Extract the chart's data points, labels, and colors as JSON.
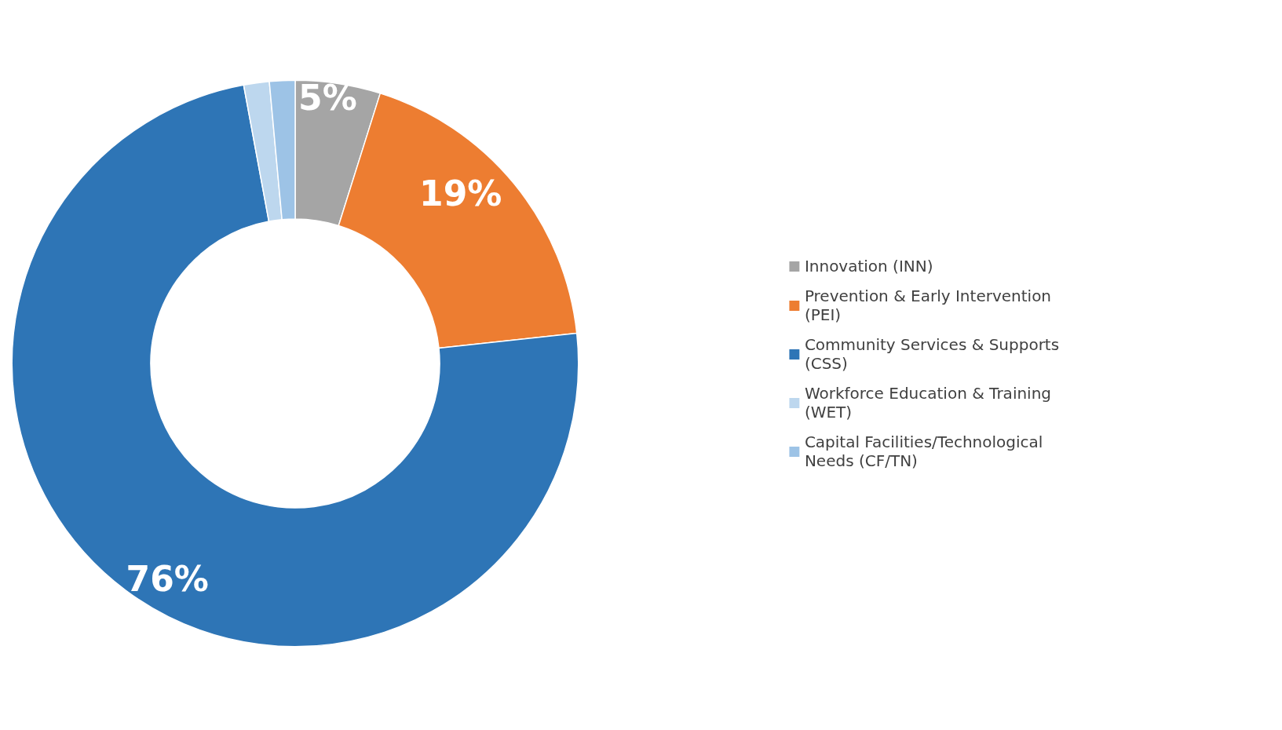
{
  "chart_data": {
    "type": "donut",
    "categories": [
      "Innovation (INN)",
      "Prevention & Early Intervention (PEI)",
      "Community Services & Supports (CSS)",
      "Workforce Education & Training (WET)",
      "Capital Facilities/Technological Needs (CF/TN)"
    ],
    "values": [
      5,
      19,
      76,
      1.5,
      1.5
    ],
    "colors": [
      "#a5a5a5",
      "#ed7d31",
      "#2e75b6",
      "#bdd7ee",
      "#9dc3e6"
    ],
    "value_labels": [
      "5%",
      "19%",
      "76%",
      null,
      null
    ],
    "legend": "right"
  }
}
